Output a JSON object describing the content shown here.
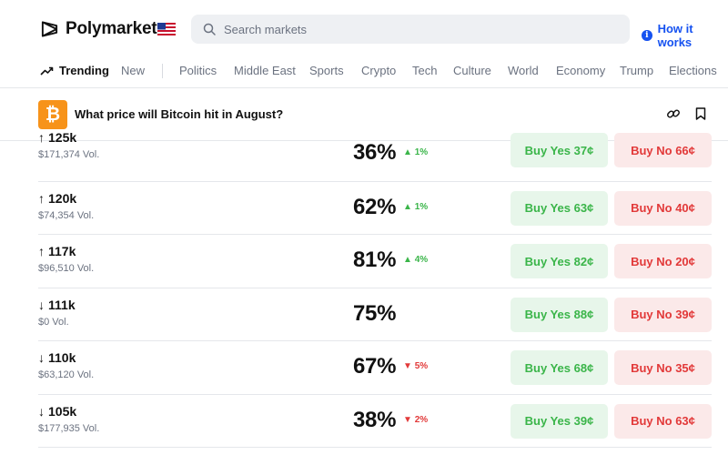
{
  "header": {
    "logo_text": "Polymarket",
    "search_placeholder": "Search markets",
    "how_it_works": "How it works",
    "info_icon_glyph": "i"
  },
  "nav": {
    "items": [
      "Trending",
      "New",
      "Politics",
      "Middle East",
      "Sports",
      "Crypto",
      "Tech",
      "Culture",
      "World",
      "Economy",
      "Trump",
      "Elections"
    ],
    "active": "Trending"
  },
  "market": {
    "title": "What price will Bitcoin hit in August?",
    "icon_glyph": "₿",
    "icons": [
      "link-icon",
      "bookmark-icon"
    ]
  },
  "rows": [
    {
      "arrow": "↑",
      "label": "125k",
      "volume": "$171,374 Vol.",
      "percent": "36%",
      "change": "1%",
      "direction": "up",
      "yes": "Buy Yes 37¢",
      "no": "Buy No 66¢"
    },
    {
      "arrow": "↑",
      "label": "120k",
      "volume": "$74,354 Vol.",
      "percent": "62%",
      "change": "1%",
      "direction": "up",
      "yes": "Buy Yes 63¢",
      "no": "Buy No 40¢"
    },
    {
      "arrow": "↑",
      "label": "117k",
      "volume": "$96,510 Vol.",
      "percent": "81%",
      "change": "4%",
      "direction": "up",
      "yes": "Buy Yes 82¢",
      "no": "Buy No 20¢"
    },
    {
      "arrow": "↓",
      "label": "111k",
      "volume": "$0 Vol.",
      "percent": "75%",
      "change": "",
      "direction": "none",
      "yes": "Buy Yes 88¢",
      "no": "Buy No 39¢"
    },
    {
      "arrow": "↓",
      "label": "110k",
      "volume": "$63,120 Vol.",
      "percent": "67%",
      "change": "5%",
      "direction": "down",
      "yes": "Buy Yes 68¢",
      "no": "Buy No 35¢"
    },
    {
      "arrow": "↓",
      "label": "105k",
      "volume": "$177,935 Vol.",
      "percent": "38%",
      "change": "2%",
      "direction": "down",
      "yes": "Buy Yes 39¢",
      "no": "Buy No 63¢"
    }
  ],
  "colors": {
    "accent_blue": "#1652f0",
    "yes_green": "#3ab549",
    "yes_bg": "#e7f6ea",
    "no_red": "#e23939",
    "no_bg": "#fbe9e9",
    "bitcoin_orange": "#f7931a"
  }
}
